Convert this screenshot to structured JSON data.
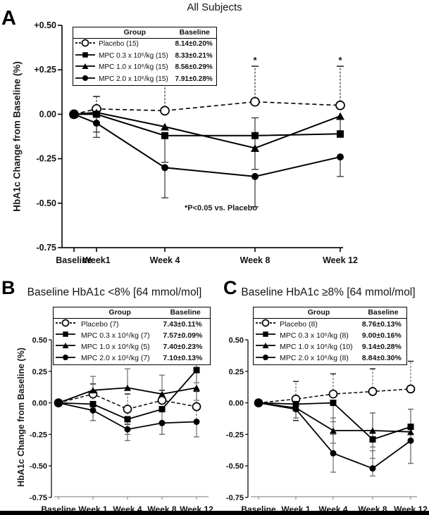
{
  "page": {
    "background": "#ffffff",
    "bottom_bar_color": "#000000",
    "ink_color": "#000000"
  },
  "chart_data": [
    {
      "id": "A",
      "type": "line",
      "panel_label": "A",
      "title": "All Subjects",
      "ylabel": "HbA1c  Change from Baseline (%)",
      "annotation": "*P<0.05 vs. Placebo",
      "x_mode": "proportional",
      "weeks": [
        0,
        1,
        4,
        8,
        12
      ],
      "categories": [
        "Baseline",
        "Week1",
        "Week 4",
        "Week 8",
        "Week 12"
      ],
      "ylim": [
        -0.75,
        0.5
      ],
      "ytick_values": [
        0.5,
        0.25,
        0,
        -0.25,
        -0.5,
        -0.75
      ],
      "ytick_labels": [
        "+0.50",
        "+0.25",
        "0.00",
        "-0.25",
        "-0.50",
        "-0.75"
      ],
      "grid": false,
      "legend_position": "top-left-inset",
      "legend_headers": [
        "Group",
        "Baseline"
      ],
      "series": [
        {
          "name": "Placebo (15)",
          "baseline": "8.14±0.20%",
          "marker": "open-circle",
          "line": "dashed",
          "values": [
            0,
            0.03,
            0.02,
            0.07,
            0.05
          ],
          "err_up": [
            0,
            0.07,
            0.19,
            0.2,
            0.22
          ],
          "err_down": [
            0,
            0,
            0,
            0,
            0
          ],
          "star_points": [
            2,
            3,
            4
          ]
        },
        {
          "name": "MPC 0.3 x 10⁶/kg (15)",
          "baseline": "8.33±0.21%",
          "marker": "filled-square",
          "line": "solid",
          "values": [
            0,
            0.0,
            -0.12,
            -0.12,
            -0.11
          ],
          "err_up": [
            0,
            0,
            0,
            0.1,
            0
          ],
          "err_down": [
            0,
            0.1,
            0.15,
            0.19,
            0
          ]
        },
        {
          "name": "MPC 1.0 x 10⁶/kg (15)",
          "baseline": "8.56±0.29%",
          "marker": "filled-triangle",
          "line": "solid",
          "values": [
            0,
            0.01,
            -0.07,
            -0.19,
            -0.01
          ],
          "err_up": [
            0,
            0,
            0,
            0,
            0
          ],
          "err_down": [
            0,
            0,
            0,
            0,
            0.12
          ]
        },
        {
          "name": "MPC 2.0 x 10⁶/kg (15)",
          "baseline": "7.91±0.28%",
          "marker": "filled-circle",
          "line": "solid",
          "values": [
            0,
            -0.05,
            -0.3,
            -0.35,
            -0.24
          ],
          "err_up": [
            0,
            0,
            0,
            0,
            0
          ],
          "err_down": [
            0,
            0.08,
            0.17,
            0.17,
            0.11
          ]
        }
      ]
    },
    {
      "id": "B",
      "type": "line",
      "panel_label": "B",
      "title": "Baseline HbA1c <8% [64 mmol/mol]",
      "ylabel": "HbA1c Change from Baseline (%)",
      "annotation": null,
      "x_mode": "equal",
      "categories": [
        "Baseline",
        "Week 1",
        "Week 4",
        "Week 8",
        "Week 12"
      ],
      "ylim": [
        -0.75,
        0.5
      ],
      "ytick_values": [
        0.5,
        0.25,
        0,
        -0.25,
        -0.5,
        -0.75
      ],
      "ytick_labels": [
        "0.50",
        "0.25",
        "0.00",
        "-0.25",
        "-0.50",
        "-0.75"
      ],
      "grid": false,
      "legend_position": "top-inset",
      "legend_headers": [
        "Group",
        "Baseline"
      ],
      "series": [
        {
          "name": "Placebo (7)",
          "baseline": "7.43±0.11%",
          "marker": "open-circle",
          "line": "dashed",
          "values": [
            0,
            0.07,
            -0.05,
            0.02,
            -0.03
          ],
          "err_up": [
            0,
            0.08,
            0.12,
            0.08,
            0.12
          ],
          "err_down": [
            0,
            0.08,
            0.12,
            0,
            0.12
          ]
        },
        {
          "name": "MPC 0.3 x 10⁶/kg (7)",
          "baseline": "7.57±0.09%",
          "marker": "filled-square",
          "line": "solid",
          "values": [
            0,
            -0.01,
            -0.13,
            -0.05,
            0.26
          ],
          "err_up": [
            0,
            0,
            0,
            0,
            0.09
          ],
          "err_down": [
            0,
            0.13,
            0.12,
            0.2,
            0.1
          ]
        },
        {
          "name": "MPC 1.0 x 10⁶/kg (5)",
          "baseline": "7.40±0.23%",
          "marker": "filled-triangle",
          "line": "solid",
          "values": [
            0,
            0.1,
            0.12,
            0.07,
            0.12
          ],
          "err_up": [
            0,
            0.11,
            0.15,
            0.15,
            0.12
          ],
          "err_down": [
            0,
            0.05,
            0,
            0,
            0.1
          ]
        },
        {
          "name": "MPC 2.0 x 10⁶/kg (7)",
          "baseline": "7.10±0.13%",
          "marker": "filled-circle",
          "line": "solid",
          "values": [
            0,
            -0.06,
            -0.21,
            -0.16,
            -0.15
          ],
          "err_up": [
            0,
            0.06,
            0.08,
            0,
            0
          ],
          "err_down": [
            0,
            0.08,
            0.09,
            0.09,
            0.12
          ]
        }
      ]
    },
    {
      "id": "C",
      "type": "line",
      "panel_label": "C",
      "title": "Baseline HbA1c ≥8% [64 mmol/mol]",
      "ylabel": null,
      "annotation": null,
      "x_mode": "equal",
      "categories": [
        "Baseline",
        "Week 1",
        "Week 4",
        "Week 8",
        "Week 12"
      ],
      "ylim": [
        -0.75,
        0.5
      ],
      "ytick_values": [
        0.5,
        0.25,
        0,
        -0.25,
        -0.5,
        -0.75
      ],
      "ytick_labels": [
        "0.50",
        "0.25",
        "0.00",
        "-0.25",
        "-0.50",
        "-0.75"
      ],
      "grid": false,
      "legend_position": "top-inset",
      "legend_headers": [
        "Group",
        "Baseline"
      ],
      "series": [
        {
          "name": "Placebo (8)",
          "baseline": "8.76±0.13%",
          "marker": "open-circle",
          "line": "dashed",
          "values": [
            0,
            0.03,
            0.07,
            0.09,
            0.11
          ],
          "err_up": [
            0,
            0.14,
            0.16,
            0.18,
            0.22
          ],
          "err_down": [
            0,
            0.17,
            0,
            0,
            0
          ]
        },
        {
          "name": "MPC 0.3 x 10⁶/kg (8)",
          "baseline": "9.00±0.16%",
          "marker": "filled-square",
          "line": "solid",
          "values": [
            0,
            -0.01,
            0.0,
            -0.29,
            -0.19
          ],
          "err_up": [
            0,
            0,
            0,
            0.21,
            0.14
          ],
          "err_down": [
            0,
            0.05,
            0.15,
            0.15,
            0.29
          ]
        },
        {
          "name": "MPC 1.0 x 10⁶/kg (10)",
          "baseline": "9.14±0.28%",
          "marker": "filled-triangle",
          "line": "solid",
          "values": [
            0,
            -0.04,
            -0.22,
            -0.22,
            -0.23
          ],
          "err_up": [
            0,
            0.07,
            0.1,
            0.14,
            0
          ],
          "err_down": [
            0,
            0.08,
            0.1,
            0.13,
            0
          ]
        },
        {
          "name": "MPC 2.0 x 10⁶/kg (8)",
          "baseline": "8.84±0.30%",
          "marker": "filled-circle",
          "line": "solid",
          "values": [
            0,
            -0.05,
            -0.4,
            -0.52,
            -0.3
          ],
          "err_up": [
            0,
            0,
            0.15,
            0.14,
            0.25
          ],
          "err_down": [
            0,
            0.07,
            0.15,
            0.06,
            0.18
          ]
        }
      ]
    }
  ]
}
